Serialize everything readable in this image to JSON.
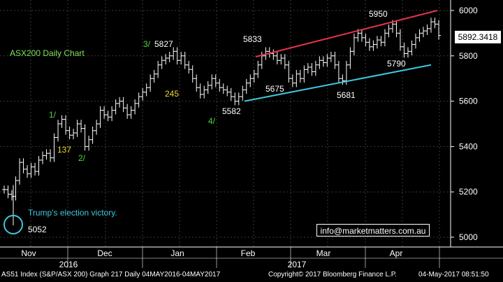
{
  "chart_data": {
    "type": "ohlc",
    "title": "ASX200 Daily Chart",
    "security": "AS51 Index (S&P/ASX 200)",
    "ylim": [
      4940,
      6040
    ],
    "yticks": [
      5000,
      5200,
      5400,
      5600,
      5800,
      6000
    ],
    "x_month_labels": [
      "Nov",
      "Dec",
      "Jan",
      "Feb",
      "Mar",
      "Apr"
    ],
    "x_year_labels": [
      "2016",
      "2017"
    ],
    "last_price": "5892.3418",
    "series": [
      {
        "values": [
          5210,
          5190,
          5180,
          5250,
          5330,
          5300,
          5280,
          5310,
          5290,
          5340,
          5360,
          5370,
          5350,
          5440,
          5500,
          5520,
          5470,
          5450,
          5460,
          5500,
          5480,
          5400,
          5430,
          5470,
          5500,
          5560,
          5540,
          5530,
          5560,
          5590,
          5600,
          5570,
          5540,
          5560,
          5590,
          5620,
          5640,
          5660,
          5700,
          5720,
          5760,
          5780,
          5790,
          5800,
          5820,
          5780,
          5800,
          5760,
          5740,
          5700,
          5660,
          5630,
          5650,
          5670,
          5700,
          5680,
          5660,
          5650,
          5640,
          5620,
          5600,
          5620,
          5650,
          5680,
          5700,
          5720,
          5760,
          5800,
          5820,
          5810,
          5800,
          5780,
          5790,
          5760,
          5700,
          5680,
          5720,
          5700,
          5740,
          5750,
          5730,
          5760,
          5780,
          5770,
          5790,
          5800,
          5760,
          5700,
          5690,
          5760,
          5820,
          5880,
          5900,
          5880,
          5860,
          5840,
          5850,
          5870,
          5860,
          5900,
          5920,
          5940,
          5900,
          5840,
          5810,
          5820,
          5850,
          5880,
          5900,
          5910,
          5920,
          5950,
          5940,
          5890
        ]
      }
    ],
    "annotations": [
      {
        "text": "5827"
      },
      {
        "text": "5833"
      },
      {
        "text": "5950"
      },
      {
        "text": "5790"
      },
      {
        "text": "5675"
      },
      {
        "text": "5681"
      },
      {
        "text": "5582"
      },
      {
        "text": "245"
      },
      {
        "text": "137"
      },
      {
        "text": "5052"
      },
      {
        "text": "3/"
      },
      {
        "text": "1/"
      },
      {
        "text": "2/"
      },
      {
        "text": "4/"
      },
      {
        "text": "Trump's election victory."
      }
    ],
    "trendlines": [
      {
        "name": "resistance",
        "color": "#e8334a",
        "from": [
          "Feb",
          5833
        ],
        "to": [
          "Apr",
          6000
        ]
      },
      {
        "name": "support",
        "color": "#3fc7e0",
        "from": [
          "Feb",
          5600
        ],
        "to": [
          "Apr",
          5760
        ]
      }
    ],
    "grid": true
  },
  "labels": {
    "chart_title": "ASX200 Daily Chart",
    "email": "info@marketmatters.com.au",
    "last_price": "5892.3418",
    "footer_left": "AS51 Index (S&P/ASX 200) Graph 217  Daily 04MAY2016-04MAY2017",
    "footer_mid": "Copyright© 2017 Bloomberg Finance L.P.",
    "footer_right": "04-May-2017 08:51:50"
  },
  "colors": {
    "background": "#000000",
    "bars": "#ffffff",
    "grid": "#3a3a3a",
    "green_label": "#4cd93c",
    "yellow_label": "#f2d434",
    "title": "#7fe35a",
    "cyan": "#3fc7e0",
    "red": "#e8334a"
  }
}
